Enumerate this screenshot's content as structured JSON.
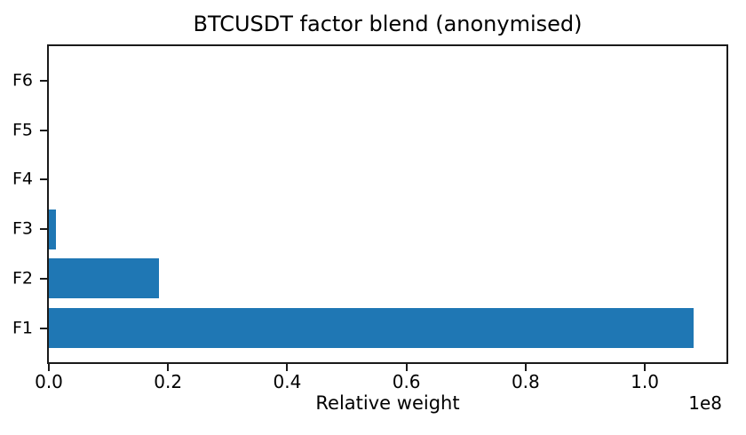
{
  "chart_data": {
    "type": "bar",
    "orientation": "horizontal",
    "title": "BTCUSDT factor blend (anonymised)",
    "xlabel": "Relative weight",
    "ylabel": "",
    "offset_text": "1e8",
    "categories": [
      "F6",
      "F5",
      "F4",
      "F3",
      "F2",
      "F1"
    ],
    "values": [
      0,
      0,
      0,
      1200000,
      18500000,
      108200000
    ],
    "xlim": [
      0,
      113700000
    ],
    "xticks": [
      {
        "value": 0,
        "label": "0.0"
      },
      {
        "value": 20000000,
        "label": "0.2"
      },
      {
        "value": 40000000,
        "label": "0.4"
      },
      {
        "value": 60000000,
        "label": "0.6"
      },
      {
        "value": 80000000,
        "label": "0.8"
      },
      {
        "value": 100000000,
        "label": "1.0"
      }
    ],
    "bar_color": "#1f77b4",
    "grid": false,
    "legend": false,
    "categories_order_note": "listed top to bottom as displayed"
  }
}
